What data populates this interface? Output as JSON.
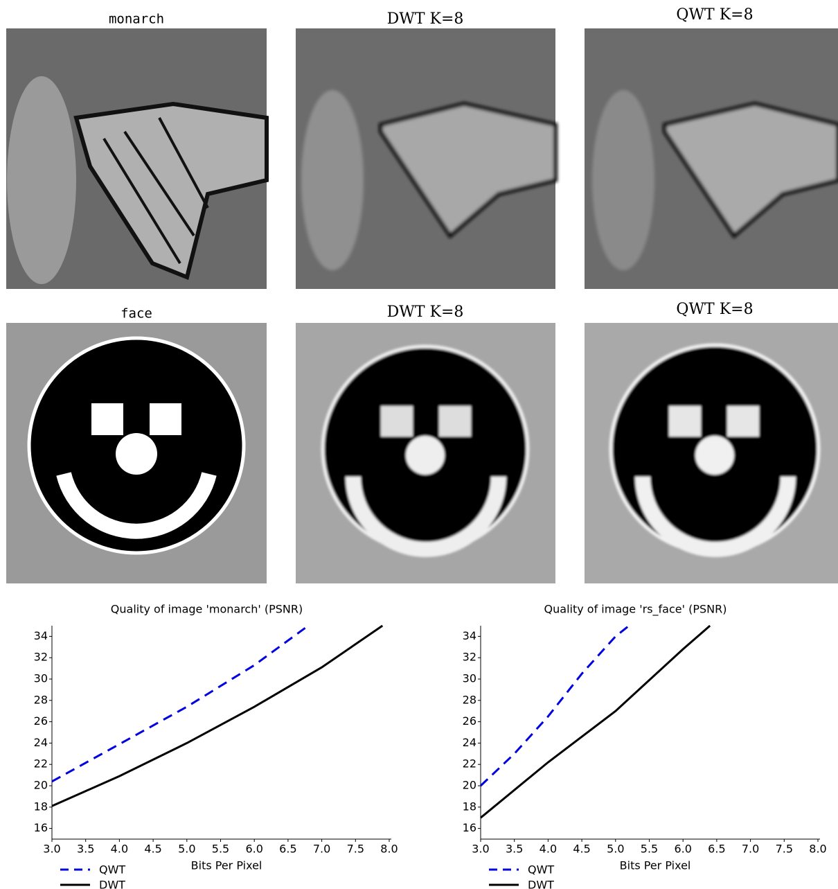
{
  "images": [
    {
      "caption": "monarch"
    },
    {
      "caption": "DWT K=8"
    },
    {
      "caption": "QWT K=8"
    },
    {
      "caption": "face"
    },
    {
      "caption": "DWT K=8"
    },
    {
      "caption": "QWT K=8"
    }
  ],
  "chart_data": [
    {
      "type": "line",
      "title": "Quality of image 'monarch' (PSNR)",
      "x_label": "Bits Per Pixel",
      "xlim": [
        3,
        8
      ],
      "ylim": [
        15,
        35
      ],
      "xticks": [
        {
          "value": 3,
          "label": "3.0"
        },
        3.5,
        {
          "value": 4,
          "label": "4.0"
        },
        4.5,
        {
          "value": 5,
          "label": "5.0"
        },
        5.5,
        {
          "value": 6,
          "label": "6.0"
        },
        6.5,
        {
          "value": 7,
          "label": "7.0"
        },
        7.5,
        {
          "value": 8,
          "label": "8.0"
        }
      ],
      "yticks": [
        16,
        18,
        20,
        22,
        24,
        26,
        28,
        30,
        32,
        34
      ],
      "legend": "bottom-left",
      "series": [
        {
          "name": "QWT",
          "color": "#0000e0",
          "dashed": true,
          "x": [
            3,
            4,
            5,
            6,
            6.8
          ],
          "values": [
            20.4,
            23.9,
            27.4,
            31.3,
            35
          ]
        },
        {
          "name": "DWT",
          "color": "#000000",
          "dashed": false,
          "x": [
            3,
            4,
            5,
            6,
            7,
            7.9
          ],
          "values": [
            18.1,
            20.9,
            24,
            27.4,
            31.1,
            35
          ]
        }
      ]
    },
    {
      "type": "line",
      "title": "Quality of image 'rs_face' (PSNR)",
      "x_label": "Bits Per Pixel",
      "xlim": [
        3,
        8
      ],
      "ylim": [
        15,
        35
      ],
      "xticks": [
        {
          "value": 3,
          "label": "3.0"
        },
        3.5,
        {
          "value": 4,
          "label": "4.0"
        },
        4.5,
        {
          "value": 5,
          "label": "5.0"
        },
        5.5,
        {
          "value": 6,
          "label": "6.0"
        },
        6.5,
        {
          "value": 7,
          "label": "7.0"
        },
        7.5,
        {
          "value": 8,
          "label": "8.0"
        }
      ],
      "yticks": [
        16,
        18,
        20,
        22,
        24,
        26,
        28,
        30,
        32,
        34
      ],
      "legend": "bottom-left",
      "series": [
        {
          "name": "QWT",
          "color": "#0000e0",
          "dashed": true,
          "x": [
            3,
            3.5,
            4,
            4.5,
            5,
            5.2
          ],
          "values": [
            20,
            23,
            26.5,
            30.5,
            34,
            35
          ]
        },
        {
          "name": "DWT",
          "color": "#000000",
          "dashed": false,
          "x": [
            3,
            4,
            5,
            6,
            6.4
          ],
          "values": [
            17,
            22.2,
            27,
            32.8,
            35
          ]
        }
      ]
    }
  ]
}
